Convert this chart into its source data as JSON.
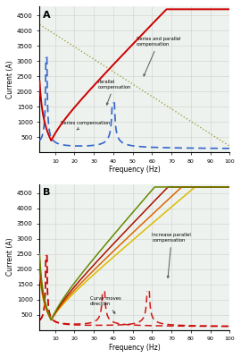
{
  "panel_A": {
    "title": "A",
    "xlabel": "Frequency (Hz)",
    "ylabel": "Current (A)",
    "xlim": [
      2,
      100
    ],
    "ylim": [
      0,
      4800
    ],
    "yticks": [
      500,
      1000,
      1500,
      2000,
      2500,
      3000,
      3500,
      4000,
      4500
    ]
  },
  "panel_B": {
    "title": "B",
    "xlabel": "Frequency (Hz)",
    "ylabel": "Current (A)",
    "xlim": [
      2,
      100
    ],
    "ylim": [
      0,
      4800
    ],
    "yticks": [
      500,
      1000,
      1500,
      2000,
      2500,
      3000,
      3500,
      4000,
      4500
    ]
  },
  "colors": {
    "red": "#cc0000",
    "blue_dashed": "#3366cc",
    "olive": "#999933",
    "yellow": "#ddbb00",
    "orange": "#dd6600",
    "dark_red": "#aa1100",
    "green_olive": "#668800",
    "bg": "#eef2ee"
  },
  "xticks": [
    10,
    20,
    30,
    40,
    50,
    60,
    70,
    80,
    90,
    100
  ],
  "xlabels": [
    "10",
    "20",
    "30",
    "40",
    "50",
    "60",
    "70",
    "80",
    "90",
    "100"
  ]
}
